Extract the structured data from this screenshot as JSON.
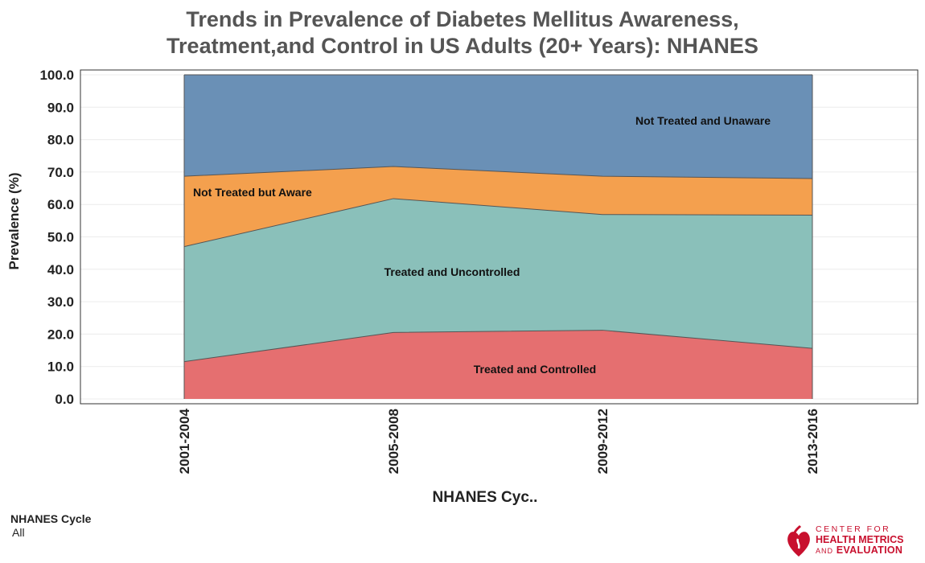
{
  "title_line1": "Trends in Prevalence of Diabetes Mellitus Awareness,",
  "title_line2": "Treatment,and Control in US Adults (20+ Years): NHANES",
  "filter": {
    "label": "NHANES Cycle",
    "value": "All"
  },
  "logo": {
    "line1": "CENTER FOR",
    "line2": "HEALTH METRICS",
    "line3_small": "AND",
    "line3": "EVALUATION"
  },
  "colors": {
    "controlled": "#e56f70",
    "uncontrolled": "#8ac0ba",
    "aware": "#f4a04e",
    "unaware": "#6a90b6",
    "logo": "#c8102e"
  },
  "chart_data": {
    "type": "area",
    "stacked": true,
    "xlabel": "NHANES Cyc..",
    "ylabel": "Prevalence (%)",
    "ylim": [
      0,
      100
    ],
    "y_ticks": [
      "0.0",
      "10.0",
      "20.0",
      "30.0",
      "40.0",
      "50.0",
      "60.0",
      "70.0",
      "80.0",
      "90.0",
      "100.0"
    ],
    "x": [
      "2001-2004",
      "2005-2008",
      "2009-2012",
      "2013-2016"
    ],
    "series": [
      {
        "name": "Treated and Controlled",
        "values": [
          11.5,
          20.5,
          21.2,
          15.6
        ],
        "color_key": "controlled"
      },
      {
        "name": "Treated and Uncontrolled",
        "values": [
          35.5,
          41.3,
          35.7,
          41.1
        ],
        "color_key": "uncontrolled"
      },
      {
        "name": "Not Treated but Aware",
        "values": [
          21.7,
          9.9,
          11.8,
          11.3
        ],
        "color_key": "aware"
      },
      {
        "name": "Not Treated and Unaware",
        "values": [
          31.3,
          28.3,
          31.3,
          32.0
        ],
        "color_key": "unaware"
      }
    ],
    "series_labels_position": [
      "bottom-right",
      "center",
      "top-left",
      "top-right"
    ],
    "grid": true
  }
}
